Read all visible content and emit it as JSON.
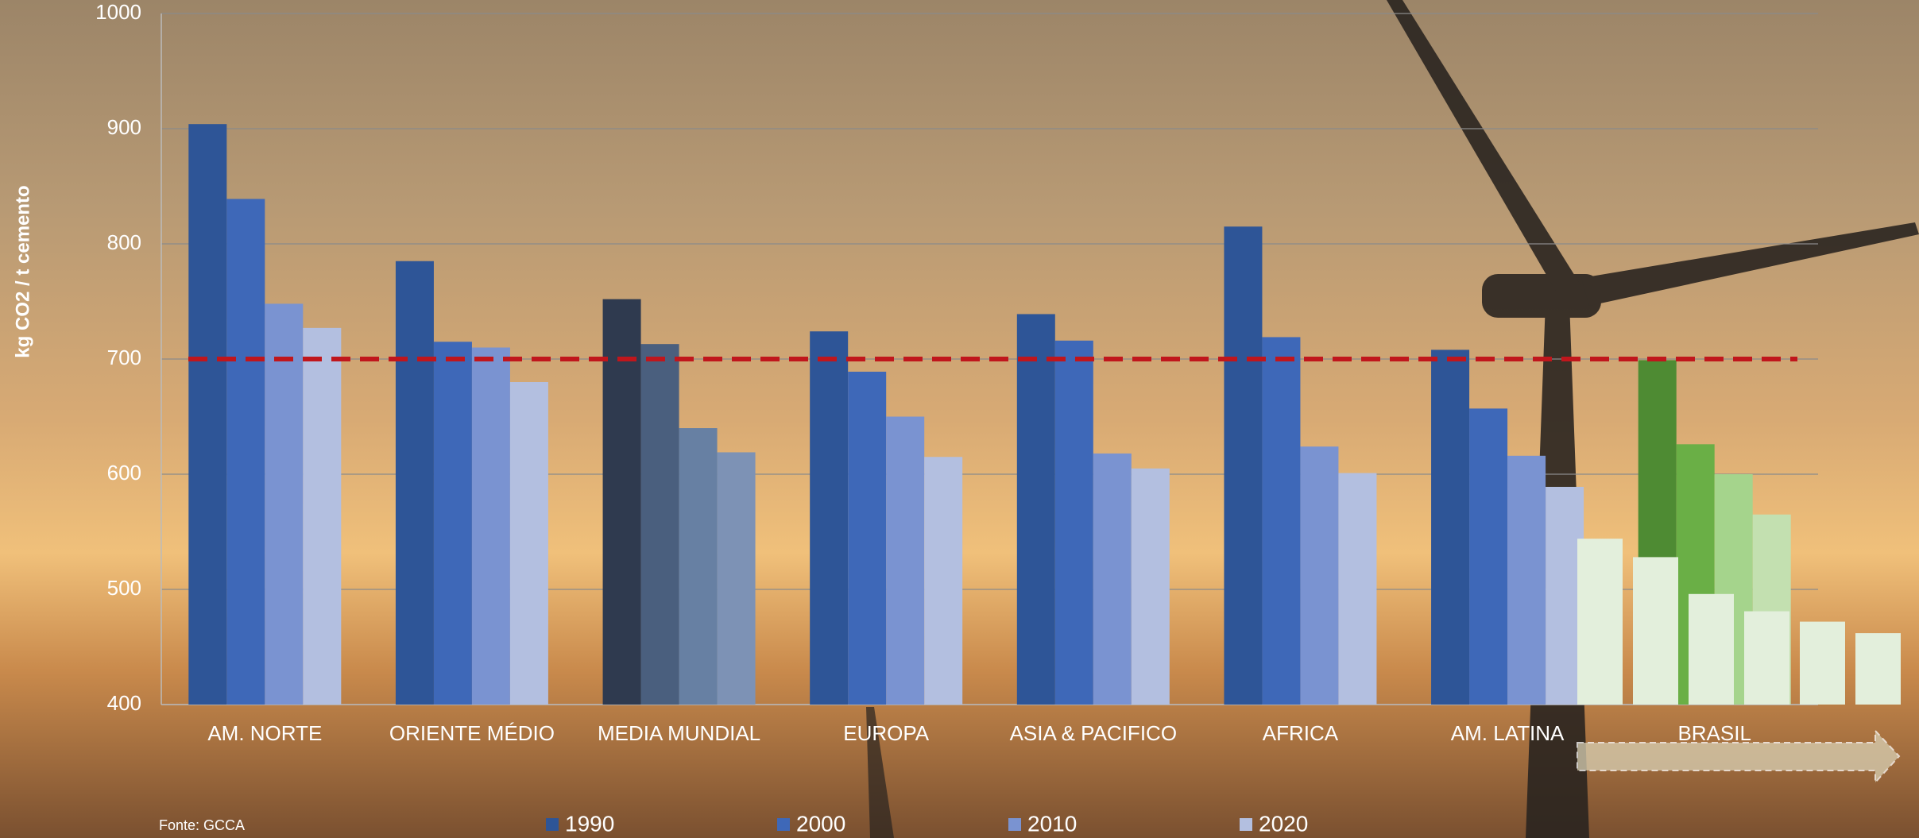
{
  "chart_data": {
    "type": "bar",
    "y_label": "kg CO2 / t cemento",
    "source": "Fonte: GCCA",
    "categories": [
      "AM. NORTE",
      "ORIENTE MÉDIO",
      "MEDIA MUNDIAL",
      "EUROPA",
      "ASIA & PACIFICO",
      "AFRICA",
      "AM. LATINA",
      "BRASIL"
    ],
    "series": [
      {
        "name": "1990",
        "color": "#2e5597",
        "colors": [
          "#2e5597",
          "#2e5597",
          "#2f3a4f",
          "#2e5597",
          "#2e5597",
          "#2e5597",
          "#2e5597",
          "#4e8b33"
        ],
        "values": [
          904,
          785,
          752,
          724,
          739,
          815,
          708,
          699
        ]
      },
      {
        "name": "2000",
        "color": "#3e68b8",
        "colors": [
          "#3e68b8",
          "#3e68b8",
          "#4a5f7e",
          "#3e68b8",
          "#3e68b8",
          "#3e68b8",
          "#3e68b8",
          "#6aaf46"
        ],
        "values": [
          839,
          715,
          713,
          689,
          716,
          719,
          657,
          626
        ]
      },
      {
        "name": "2010",
        "color": "#7a93d1",
        "colors": [
          "#7a93d1",
          "#7a93d1",
          "#6780a3",
          "#7a93d1",
          "#7a93d1",
          "#7a93d1",
          "#7a93d1",
          "#a5d48c"
        ],
        "values": [
          748,
          710,
          640,
          650,
          618,
          624,
          616,
          600
        ]
      },
      {
        "name": "2020",
        "color": "#b3bfe0",
        "colors": [
          "#b3bfe0",
          "#b3bfe0",
          "#7d92b5",
          "#b3bfe0",
          "#b3bfe0",
          "#b3bfe0",
          "#b3bfe0",
          "#c3e0b0"
        ],
        "values": [
          727,
          680,
          619,
          615,
          605,
          601,
          589,
          565
        ]
      }
    ],
    "overlay_bars": {
      "color": "#e3efdc",
      "values": [
        544,
        528,
        496,
        481,
        472,
        462
      ]
    },
    "reference_line": 700,
    "reference_color": "#c0161c",
    "ylim": [
      400,
      1000
    ],
    "yticks": [
      400,
      500,
      600,
      700,
      800,
      900,
      1000
    ],
    "grid": true
  }
}
